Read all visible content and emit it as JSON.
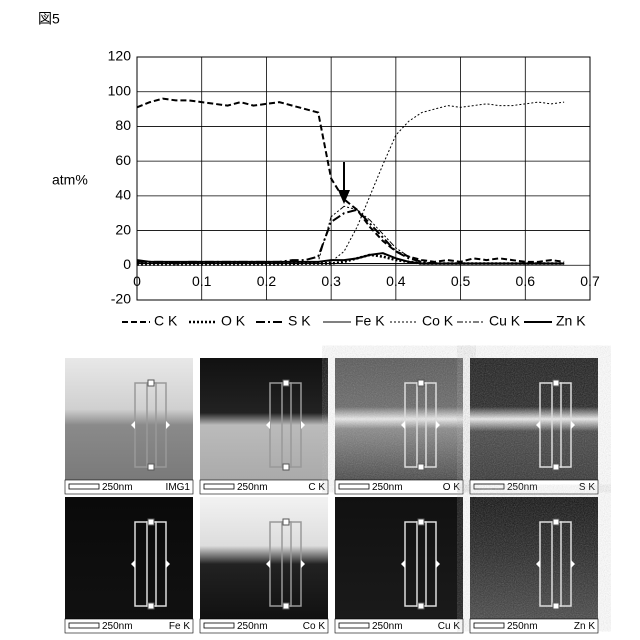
{
  "figure_label": "図5",
  "chart_data": {
    "type": "line",
    "y_label": "atm%",
    "x": [
      0,
      0.02,
      0.04,
      0.06,
      0.08,
      0.1,
      0.12,
      0.14,
      0.16,
      0.18,
      0.2,
      0.22,
      0.24,
      0.26,
      0.28,
      0.3,
      0.32,
      0.34,
      0.36,
      0.38,
      0.4,
      0.42,
      0.44,
      0.46,
      0.48,
      0.5,
      0.52,
      0.54,
      0.56,
      0.58,
      0.6,
      0.62,
      0.64,
      0.66
    ],
    "series": [
      {
        "name": "C K",
        "color": "#000",
        "values": [
          91,
          94,
          96,
          95,
          95,
          94,
          93,
          92,
          94,
          92,
          93,
          94,
          92,
          90,
          88,
          50,
          38,
          32,
          22,
          14,
          8,
          5,
          3,
          2,
          3,
          2,
          4,
          3,
          4,
          3,
          2,
          2,
          3,
          2
        ]
      },
      {
        "name": "O K",
        "color": "#000",
        "values": [
          1,
          1,
          1,
          1,
          1,
          1,
          1,
          1,
          1,
          1,
          1,
          1,
          1,
          1,
          1,
          1,
          2,
          4,
          6,
          5,
          3,
          2,
          1,
          1,
          1,
          1,
          1,
          1,
          1,
          1,
          1,
          1,
          1,
          1
        ]
      },
      {
        "name": "S K",
        "color": "#000",
        "values": [
          2,
          2,
          2,
          1,
          2,
          2,
          2,
          2,
          2,
          2,
          2,
          2,
          3,
          3,
          5,
          25,
          30,
          32,
          24,
          16,
          8,
          4,
          2,
          1,
          1,
          1,
          1,
          1,
          1,
          1,
          1,
          1,
          1,
          1
        ]
      },
      {
        "name": "Fe K",
        "color": "#000",
        "values": [
          1,
          1,
          1,
          1,
          1,
          1,
          1,
          1,
          1,
          1,
          1,
          1,
          1,
          1,
          1,
          1,
          1,
          1,
          1,
          1,
          1,
          1,
          1,
          1,
          1,
          1,
          1,
          1,
          1,
          1,
          1,
          1,
          1,
          1
        ]
      },
      {
        "name": "Co K",
        "color": "#000",
        "values": [
          0,
          0,
          0,
          0,
          0,
          0,
          0,
          0,
          0,
          0,
          0,
          0,
          0,
          1,
          1,
          2,
          8,
          22,
          40,
          58,
          75,
          83,
          88,
          90,
          92,
          91,
          92,
          93,
          92,
          92,
          93,
          94,
          93,
          94
        ]
      },
      {
        "name": "Cu K",
        "color": "#000",
        "values": [
          1,
          1,
          1,
          1,
          1,
          1,
          1,
          1,
          1,
          1,
          1,
          1,
          1,
          1,
          2,
          28,
          34,
          32,
          26,
          18,
          10,
          5,
          2,
          1,
          1,
          1,
          1,
          1,
          1,
          1,
          1,
          1,
          1,
          1
        ]
      },
      {
        "name": "Zn K",
        "color": "#000",
        "values": [
          3,
          2,
          2,
          2,
          2,
          2,
          2,
          2,
          2,
          2,
          2,
          2,
          2,
          2,
          2,
          3,
          3,
          4,
          6,
          7,
          4,
          2,
          1,
          1,
          1,
          1,
          1,
          1,
          1,
          1,
          1,
          1,
          1,
          1
        ]
      }
    ],
    "xlim": [
      0,
      0.7
    ],
    "xticks": [
      0,
      0.1,
      0.2,
      0.3,
      0.4,
      0.5,
      0.6,
      0.7
    ],
    "ylim": [
      -20,
      120
    ],
    "yticks": [
      -20,
      0,
      20,
      40,
      60,
      80,
      100,
      120
    ],
    "grid": true
  },
  "maps": [
    {
      "scale": "250nm",
      "label": "IMG1"
    },
    {
      "scale": "250nm",
      "label": "C K"
    },
    {
      "scale": "250nm",
      "label": "O K"
    },
    {
      "scale": "250nm",
      "label": "S K"
    },
    {
      "scale": "250nm",
      "label": "Fe K"
    },
    {
      "scale": "250nm",
      "label": "Co K"
    },
    {
      "scale": "250nm",
      "label": "Cu K"
    },
    {
      "scale": "250nm",
      "label": "Zn K"
    }
  ]
}
